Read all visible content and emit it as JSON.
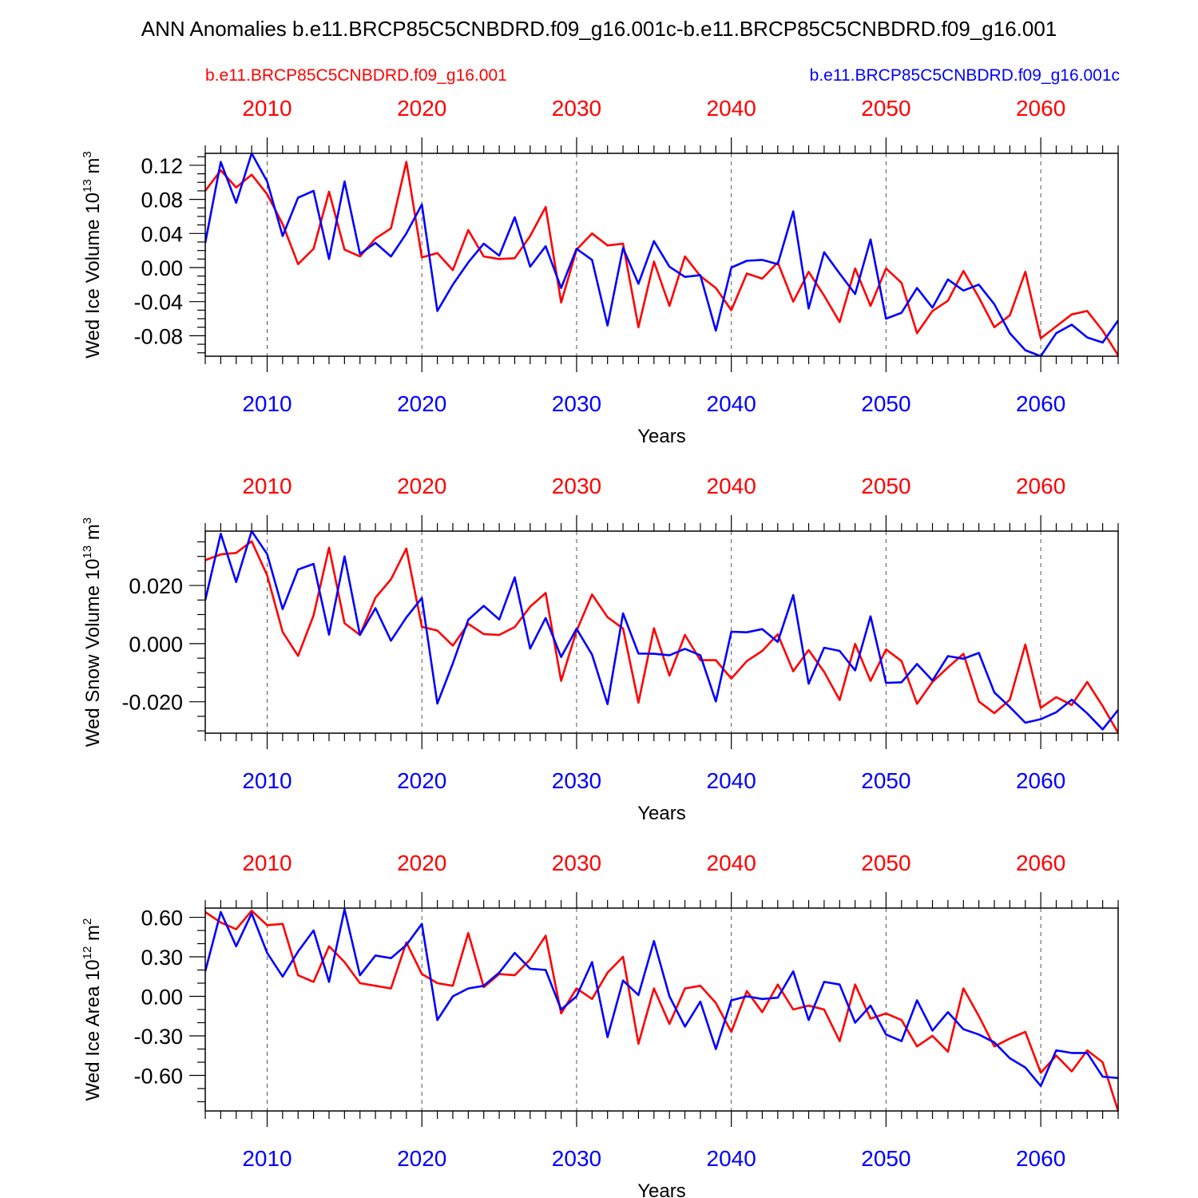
{
  "title": "ANN Anomalies b.e11.BRCP85C5CNBDRD.f09_g16.001c-b.e11.BRCP85C5CNBDRD.f09_g16.001",
  "legend": {
    "left": {
      "label": "b.e11.BRCP85C5CNBDRD.f09_g16.001",
      "color": "#ff0000"
    },
    "right": {
      "label": "b.e11.BRCP85C5CNBDRD.f09_g16.001c",
      "color": "#0000ff"
    }
  },
  "colors": {
    "red_series": "#ff0000",
    "blue_series": "#0000ff"
  },
  "chart_data": [
    {
      "type": "line",
      "ylabel": "Wed Ice Volume 10",
      "ylabel_exp": "13",
      "ylabel_unit": " m",
      "ylabel_unit_exp": "3",
      "xlabel": "Years",
      "xlim": [
        2006,
        2065
      ],
      "ylim": [
        -0.104,
        0.134
      ],
      "x_ticks": [
        2010,
        2020,
        2030,
        2040,
        2050,
        2060
      ],
      "x_tick_labels": [
        "2010",
        "2020",
        "2030",
        "2040",
        "2050",
        "2060"
      ],
      "y_ticks": [
        -0.08,
        -0.04,
        0.0,
        0.04,
        0.08,
        0.12
      ],
      "y_tick_labels": [
        "-0.08",
        "-0.04",
        "0.00",
        "0.04",
        "0.08",
        "0.12"
      ],
      "y_minor_step": 0.01,
      "series": [
        {
          "name": "b.e11.BRCP85C5CNBDRD.f09_g16.001",
          "color": "#ff0000",
          "values": [
            0.09,
            0.114,
            0.094,
            0.109,
            0.086,
            0.051,
            0.004,
            0.022,
            0.089,
            0.021,
            0.013,
            0.034,
            0.046,
            0.124,
            0.012,
            0.017,
            -0.003,
            0.044,
            0.013,
            0.01,
            0.011,
            0.037,
            0.071,
            -0.041,
            0.021,
            0.04,
            0.026,
            0.028,
            -0.07,
            0.007,
            -0.045,
            0.013,
            -0.01,
            -0.024,
            -0.05,
            -0.007,
            -0.013,
            0.006,
            -0.04,
            -0.005,
            -0.033,
            -0.064,
            -0.001,
            -0.045,
            -0.001,
            -0.018,
            -0.077,
            -0.051,
            -0.039,
            -0.004,
            -0.035,
            -0.07,
            -0.056,
            -0.005,
            -0.083,
            -0.069,
            -0.055,
            -0.051,
            -0.074,
            -0.103
          ]
        },
        {
          "name": "b.e11.BRCP85C5CNBDRD.f09_g16.001c",
          "color": "#0000ff",
          "values": [
            0.029,
            0.124,
            0.076,
            0.134,
            0.101,
            0.037,
            0.082,
            0.09,
            0.01,
            0.101,
            0.016,
            0.029,
            0.013,
            0.04,
            0.074,
            -0.051,
            -0.02,
            0.006,
            0.028,
            0.014,
            0.059,
            0.001,
            0.025,
            -0.024,
            0.022,
            0.009,
            -0.068,
            0.023,
            -0.019,
            0.031,
            0.001,
            -0.011,
            -0.009,
            -0.074,
            0.0,
            0.008,
            0.009,
            0.004,
            0.066,
            -0.048,
            0.018,
            -0.007,
            -0.031,
            0.033,
            -0.06,
            -0.053,
            -0.024,
            -0.047,
            -0.014,
            -0.027,
            -0.02,
            -0.043,
            -0.077,
            -0.097,
            -0.104,
            -0.077,
            -0.067,
            -0.082,
            -0.088,
            -0.062
          ]
        }
      ]
    },
    {
      "type": "line",
      "ylabel": "Wed Snow Volume 10",
      "ylabel_exp": "13",
      "ylabel_unit": " m",
      "ylabel_unit_exp": "3",
      "xlabel": "Years",
      "xlim": [
        2006,
        2065
      ],
      "ylim": [
        -0.0308,
        0.0387
      ],
      "x_ticks": [
        2010,
        2020,
        2030,
        2040,
        2050,
        2060
      ],
      "x_tick_labels": [
        "2010",
        "2020",
        "2030",
        "2040",
        "2050",
        "2060"
      ],
      "y_ticks": [
        -0.02,
        0.0,
        0.02
      ],
      "y_tick_labels": [
        "-0.020",
        "0.000",
        "0.020"
      ],
      "y_minor_step": 0.005,
      "series": [
        {
          "name": "b.e11.BRCP85C5CNBDRD.f09_g16.001",
          "color": "#ff0000",
          "values": [
            0.0287,
            0.0307,
            0.0312,
            0.0352,
            0.0235,
            0.004,
            -0.0042,
            0.0097,
            0.033,
            0.007,
            0.003,
            0.0158,
            0.0221,
            0.0327,
            0.0058,
            0.0045,
            -0.0007,
            0.0068,
            0.0033,
            0.003,
            0.0057,
            0.0127,
            0.0174,
            -0.0128,
            0.0044,
            0.0169,
            0.0091,
            0.0052,
            -0.0203,
            0.0053,
            -0.011,
            0.003,
            -0.0057,
            -0.0057,
            -0.012,
            -0.006,
            -0.0025,
            0.0032,
            -0.0095,
            -0.0022,
            -0.0097,
            -0.0194,
            -0.0001,
            -0.0128,
            -0.002,
            -0.006,
            -0.0207,
            -0.0132,
            -0.0082,
            -0.0035,
            -0.0199,
            -0.0239,
            -0.0193,
            -0.0003,
            -0.0221,
            -0.0184,
            -0.0211,
            -0.0132,
            -0.0215,
            -0.0307
          ]
        },
        {
          "name": "b.e11.BRCP85C5CNBDRD.f09_g16.001c",
          "color": "#0000ff",
          "values": [
            0.015,
            0.0378,
            0.0212,
            0.0387,
            0.0308,
            0.0119,
            0.0255,
            0.0274,
            0.0031,
            0.03,
            0.003,
            0.0122,
            0.001,
            0.009,
            0.0157,
            -0.0206,
            -0.0068,
            0.0082,
            0.013,
            0.0083,
            0.0228,
            -0.0017,
            0.0088,
            -0.0046,
            0.0051,
            -0.0038,
            -0.0208,
            0.0104,
            -0.0034,
            -0.0035,
            -0.004,
            -0.0018,
            -0.004,
            -0.0199,
            0.0041,
            0.0039,
            0.005,
            0.0006,
            0.0167,
            -0.0138,
            -0.0014,
            -0.0025,
            -0.0092,
            0.0094,
            -0.0135,
            -0.0133,
            -0.007,
            -0.0127,
            -0.0043,
            -0.0052,
            -0.0032,
            -0.0168,
            -0.0218,
            -0.0272,
            -0.026,
            -0.0236,
            -0.0193,
            -0.024,
            -0.0295,
            -0.0228
          ]
        }
      ]
    },
    {
      "type": "line",
      "ylabel": "Wed Ice Area 10",
      "ylabel_exp": "12",
      "ylabel_unit": " m",
      "ylabel_unit_exp": "2",
      "xlabel": "Years",
      "xlim": [
        2006,
        2065
      ],
      "ylim": [
        -0.87,
        0.67
      ],
      "x_ticks": [
        2010,
        2020,
        2030,
        2040,
        2050,
        2060
      ],
      "x_tick_labels": [
        "2010",
        "2020",
        "2030",
        "2040",
        "2050",
        "2060"
      ],
      "y_ticks": [
        -0.6,
        -0.3,
        0.0,
        0.3,
        0.6
      ],
      "y_tick_labels": [
        "-0.60",
        "-0.30",
        "0.00",
        "0.30",
        "0.60"
      ],
      "y_minor_step": 0.1,
      "series": [
        {
          "name": "b.e11.BRCP85C5CNBDRD.f09_g16.001",
          "color": "#ff0000",
          "values": [
            0.64,
            0.56,
            0.51,
            0.65,
            0.54,
            0.55,
            0.16,
            0.11,
            0.38,
            0.26,
            0.1,
            0.08,
            0.06,
            0.41,
            0.17,
            0.1,
            0.08,
            0.48,
            0.07,
            0.17,
            0.16,
            0.28,
            0.46,
            -0.13,
            0.06,
            -0.02,
            0.18,
            0.3,
            -0.36,
            0.06,
            -0.21,
            0.06,
            0.08,
            -0.05,
            -0.27,
            0.04,
            -0.12,
            0.09,
            -0.1,
            -0.07,
            -0.1,
            -0.34,
            0.09,
            -0.17,
            -0.13,
            -0.18,
            -0.38,
            -0.3,
            -0.42,
            0.06,
            -0.15,
            -0.38,
            -0.32,
            -0.27,
            -0.58,
            -0.45,
            -0.57,
            -0.41,
            -0.5,
            -0.87
          ]
        },
        {
          "name": "b.e11.BRCP85C5CNBDRD.f09_g16.001c",
          "color": "#0000ff",
          "values": [
            0.19,
            0.64,
            0.38,
            0.63,
            0.33,
            0.15,
            0.34,
            0.5,
            0.11,
            0.66,
            0.16,
            0.31,
            0.29,
            0.39,
            0.55,
            -0.18,
            0.0,
            0.06,
            0.08,
            0.18,
            0.33,
            0.21,
            0.2,
            -0.1,
            0.0,
            0.26,
            -0.31,
            0.12,
            0.01,
            0.42,
            0.0,
            -0.23,
            -0.04,
            -0.4,
            -0.03,
            0.0,
            -0.02,
            -0.01,
            0.19,
            -0.18,
            0.11,
            0.09,
            -0.2,
            -0.07,
            -0.29,
            -0.34,
            -0.03,
            -0.26,
            -0.12,
            -0.25,
            -0.29,
            -0.35,
            -0.47,
            -0.54,
            -0.68,
            -0.41,
            -0.43,
            -0.43,
            -0.61,
            -0.62
          ]
        }
      ]
    }
  ]
}
